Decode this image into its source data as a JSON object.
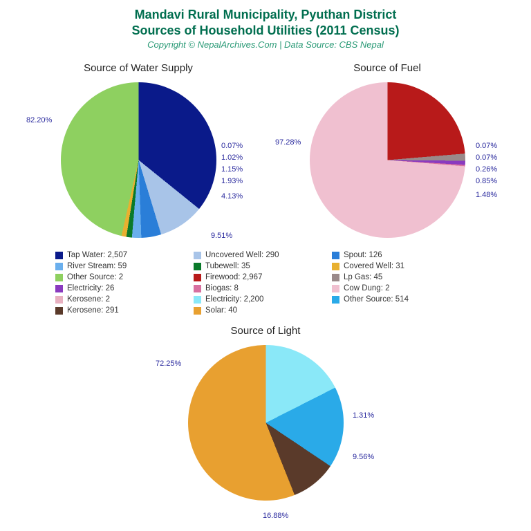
{
  "header": {
    "title_line1": "Mandavi Rural Municipality, Pyuthan District",
    "title_line2": "Sources of Household Utilities (2011 Census)",
    "title_color": "#006e4f",
    "title_fontsize": 18,
    "copyright": "Copyright © NepalArchives.Com | Data Source: CBS Nepal",
    "copyright_color": "#2a9a76",
    "copyright_fontsize": 13
  },
  "label_color": "#2a2a9e",
  "charts": {
    "water": {
      "title": "Source of Water Supply",
      "title_fontsize": 15,
      "slices": [
        {
          "label": "Tap Water",
          "value": 2507,
          "pct": "82.20%",
          "color": "#0a1a8a"
        },
        {
          "label": "Uncovered Well",
          "value": 290,
          "pct": "9.51%",
          "color": "#a8c4e8"
        },
        {
          "label": "Spout",
          "value": 126,
          "pct": "4.13%",
          "color": "#2a7ed8"
        },
        {
          "label": "River Stream",
          "value": 59,
          "pct": "1.93%",
          "color": "#6aafed"
        },
        {
          "label": "Tubewell",
          "value": 35,
          "pct": "1.15%",
          "color": "#0a7a2a"
        },
        {
          "label": "Covered Well",
          "value": 31,
          "pct": "1.02%",
          "color": "#e8b030"
        },
        {
          "label": "Other Source",
          "value": 2,
          "pct": "0.07%",
          "color": "#8ed060"
        }
      ]
    },
    "fuel": {
      "title": "Source of Fuel",
      "title_fontsize": 15,
      "slices": [
        {
          "label": "Firewood",
          "value": 2967,
          "pct": "97.28%",
          "color": "#b81a1a"
        },
        {
          "label": "Lp Gas",
          "value": 45,
          "pct": "1.48%",
          "color": "#9a8a8a"
        },
        {
          "label": "Electricity",
          "value": 26,
          "pct": "0.85%",
          "color": "#8a3abf"
        },
        {
          "label": "Biogas",
          "value": 8,
          "pct": "0.26%",
          "color": "#d870a0"
        },
        {
          "label": "Kerosene",
          "value": 2,
          "pct": "0.07%",
          "color": "#e8b0c0"
        },
        {
          "label": "Cow Dung",
          "value": 2,
          "pct": "0.07%",
          "color": "#f0c0d0"
        }
      ]
    },
    "light": {
      "title": "Source of Light",
      "title_fontsize": 15,
      "slices": [
        {
          "label": "Electricity",
          "value": 2200,
          "pct": "72.25%",
          "color": "#8ae8f8"
        },
        {
          "label": "Other Source",
          "value": 514,
          "pct": "16.88%",
          "color": "#2aaae8"
        },
        {
          "label": "Kerosene",
          "value": 291,
          "pct": "9.56%",
          "color": "#5a3a2a"
        },
        {
          "label": "Solar",
          "value": 40,
          "pct": "1.31%",
          "color": "#e8a030"
        }
      ]
    }
  },
  "legend_items": [
    {
      "label": "Tap Water: 2,507",
      "color": "#0a1a8a"
    },
    {
      "label": "Uncovered Well: 290",
      "color": "#a8c4e8"
    },
    {
      "label": "Spout: 126",
      "color": "#2a7ed8"
    },
    {
      "label": "River Stream: 59",
      "color": "#6aafed"
    },
    {
      "label": "Tubewell: 35",
      "color": "#0a7a2a"
    },
    {
      "label": "Covered Well: 31",
      "color": "#e8b030"
    },
    {
      "label": "Other Source: 2",
      "color": "#8ed060"
    },
    {
      "label": "Firewood: 2,967",
      "color": "#b81a1a"
    },
    {
      "label": "Lp Gas: 45",
      "color": "#9a8a8a"
    },
    {
      "label": "Electricity: 26",
      "color": "#8a3abf"
    },
    {
      "label": "Biogas: 8",
      "color": "#d870a0"
    },
    {
      "label": "Cow Dung: 2",
      "color": "#f0c0d0"
    },
    {
      "label": "Kerosene: 2",
      "color": "#e8b0c0"
    },
    {
      "label": "Electricity: 2,200",
      "color": "#8ae8f8"
    },
    {
      "label": "Other Source: 514",
      "color": "#2aaae8"
    },
    {
      "label": "Kerosene: 291",
      "color": "#5a3a2a"
    },
    {
      "label": "Solar: 40",
      "color": "#e8a030"
    }
  ]
}
